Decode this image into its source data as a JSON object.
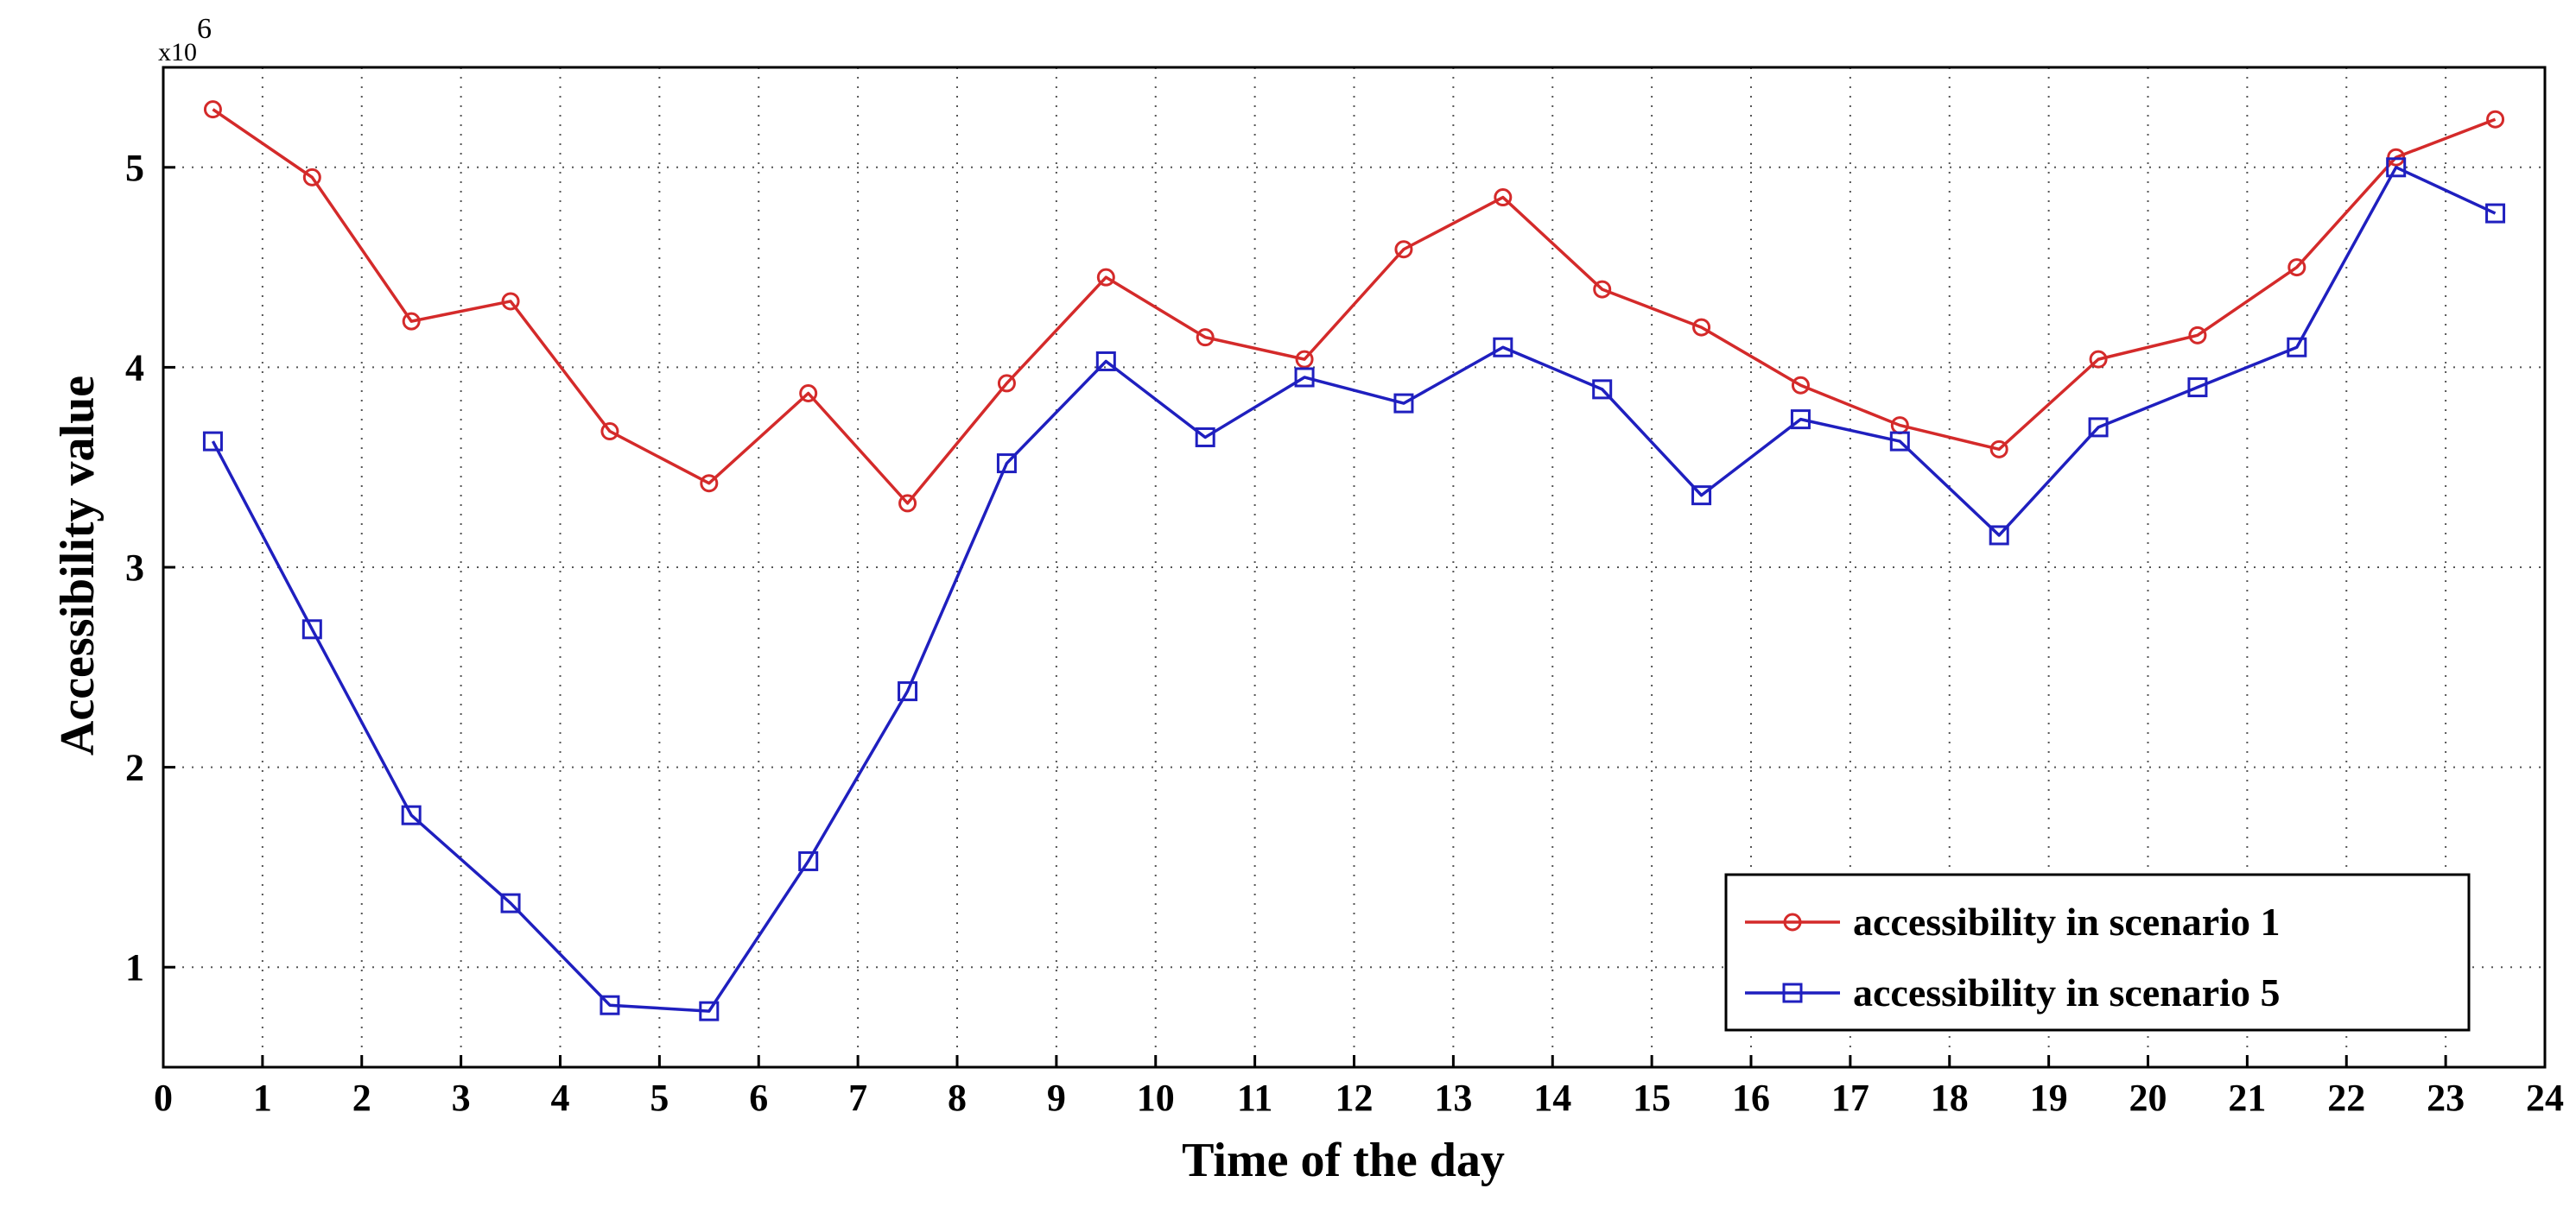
{
  "chart_data": {
    "type": "line",
    "xlabel": "Time of the day",
    "ylabel": "Accessibility value",
    "y_multiplier_base": "x10",
    "y_multiplier_exp": "6",
    "xlim": [
      0,
      24
    ],
    "ylim": [
      0.5,
      5.5
    ],
    "xticks": [
      0,
      1,
      2,
      3,
      4,
      5,
      6,
      7,
      8,
      9,
      10,
      11,
      12,
      13,
      14,
      15,
      16,
      17,
      18,
      19,
      20,
      21,
      22,
      23,
      24
    ],
    "yticks": [
      1,
      2,
      3,
      4,
      5
    ],
    "grid": true,
    "legend_position": "bottom-right",
    "x": [
      0.5,
      1.5,
      2.5,
      3.5,
      4.5,
      5.5,
      6.5,
      7.5,
      8.5,
      9.5,
      10.5,
      11.5,
      12.5,
      13.5,
      14.5,
      15.5,
      16.5,
      17.5,
      18.5,
      19.5,
      20.5,
      21.5,
      22.5,
      23.5
    ],
    "series": [
      {
        "name": "accessibility in scenario 1",
        "color": "#d42a2a",
        "marker": "circle",
        "values": [
          5.29,
          4.95,
          4.23,
          4.33,
          3.68,
          3.42,
          3.87,
          3.32,
          3.92,
          4.45,
          4.15,
          4.04,
          4.59,
          4.85,
          4.39,
          4.2,
          3.91,
          3.71,
          3.59,
          4.04,
          4.16,
          4.5,
          5.05,
          5.24
        ]
      },
      {
        "name": "accessibility in scenario 5",
        "color": "#1f1fbf",
        "marker": "square",
        "values": [
          3.63,
          2.69,
          1.76,
          1.32,
          0.81,
          0.78,
          1.53,
          2.38,
          3.52,
          4.03,
          3.65,
          3.95,
          3.82,
          4.1,
          3.89,
          3.36,
          3.74,
          3.63,
          3.16,
          3.7,
          3.9,
          4.1,
          5.0,
          4.77
        ]
      }
    ]
  }
}
